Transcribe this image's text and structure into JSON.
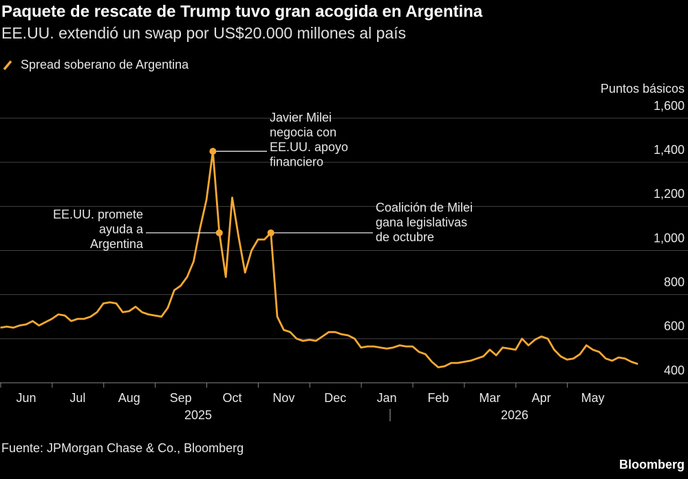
{
  "chart_data": {
    "type": "line",
    "title": "Paquete de rescate de Trump tuvo gran acogida en Argentina",
    "subtitle": "EE.UU. extendió un swap por US$20.000 millones al país",
    "y_axis_label": "Puntos básicos",
    "source": "Fuente: JPMorgan Chase & Co., Bloomberg",
    "brand": "Bloomberg",
    "categories": [
      null,
      null,
      null,
      null,
      "Jun",
      null,
      null,
      null,
      null,
      null,
      null,
      null,
      "Jul",
      null,
      null,
      null,
      null,
      null,
      null,
      null,
      "Aug",
      null,
      null,
      null,
      null,
      null,
      null,
      null,
      "Sep",
      null,
      null,
      null,
      null,
      null,
      null,
      null,
      "Oct",
      null,
      null,
      null,
      null,
      null,
      null,
      null,
      "Nov",
      null,
      null,
      null,
      null,
      null,
      null,
      null,
      "Dec",
      null,
      null,
      null,
      null,
      null,
      null,
      null,
      "Jan",
      null,
      null,
      null,
      null,
      null,
      null,
      null,
      "Feb",
      null,
      null,
      null,
      null,
      null,
      null,
      null,
      "Mar",
      null,
      null,
      null,
      null,
      null,
      null,
      null,
      "Apr",
      null,
      null,
      null,
      null,
      null,
      null,
      null,
      "May",
      null,
      null,
      null,
      null,
      null,
      null,
      null
    ],
    "x_group_labels": [
      "2025",
      "2026"
    ],
    "series": [
      {
        "name": "Spread soberano de Argentina",
        "color": "#f7a833",
        "values": [
          650,
          655,
          650,
          660,
          665,
          680,
          660,
          675,
          690,
          710,
          705,
          680,
          690,
          690,
          700,
          720,
          760,
          765,
          760,
          720,
          725,
          745,
          720,
          710,
          705,
          700,
          740,
          820,
          840,
          880,
          950,
          1100,
          1230,
          1450,
          1080,
          880,
          1240,
          1060,
          900,
          1000,
          1050,
          1050,
          1080,
          700,
          640,
          630,
          600,
          590,
          595,
          590,
          610,
          630,
          630,
          620,
          615,
          600,
          560,
          565,
          565,
          560,
          555,
          560,
          570,
          565,
          565,
          540,
          530,
          495,
          470,
          475,
          490,
          490,
          495,
          500,
          510,
          520,
          550,
          525,
          560,
          555,
          550,
          600,
          570,
          595,
          610,
          600,
          550,
          520,
          505,
          510,
          530,
          570,
          550,
          540,
          510,
          500,
          515,
          510,
          495,
          485
        ]
      }
    ],
    "annotations": [
      {
        "lines": [
          "Javier Milei",
          "negocia con",
          "EE.UU. apoyo",
          "financiero"
        ]
      },
      {
        "lines": [
          "EE.UU. promete",
          "ayuda a",
          "Argentina"
        ]
      },
      {
        "lines": [
          "Coalición de Milei",
          "gana legislativas",
          "de octubre"
        ]
      }
    ],
    "ylim": [
      400,
      1600
    ],
    "yticks": [
      {
        "value": 1600,
        "label": "1,600"
      },
      {
        "value": 1400,
        "label": "1,400"
      },
      {
        "value": 1200,
        "label": "1,200"
      },
      {
        "value": 1000,
        "label": "1,000"
      },
      800,
      600,
      400
    ],
    "grid": true
  }
}
